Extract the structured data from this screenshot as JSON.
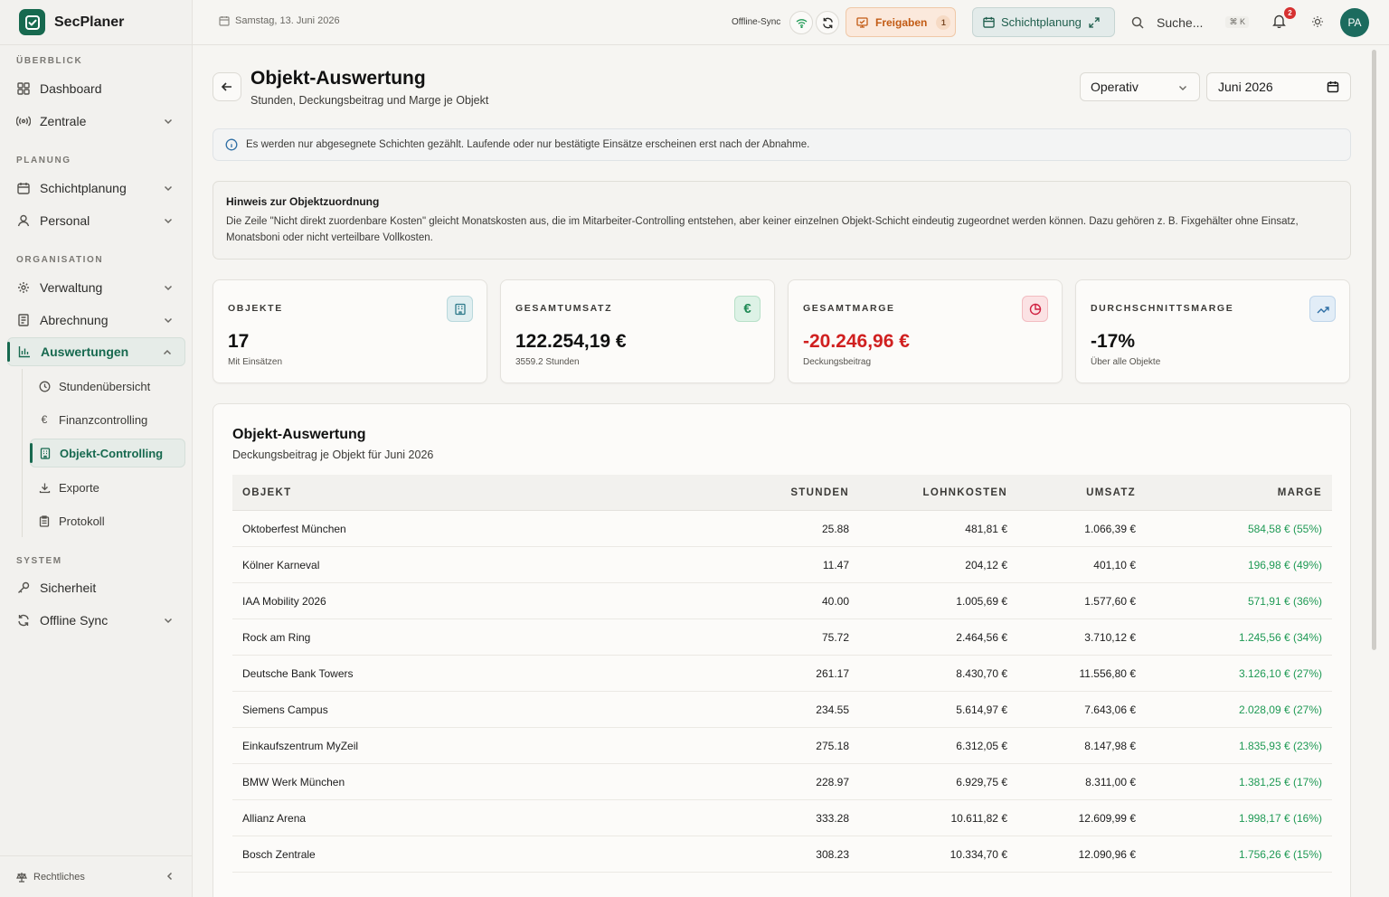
{
  "app": {
    "name": "SecPlaner"
  },
  "sidebar": {
    "sections": {
      "overview": "ÜBERBLICK",
      "planning": "PLANUNG",
      "organisation": "ORGANISATION",
      "system": "SYSTEM"
    },
    "items": {
      "dashboard": "Dashboard",
      "zentrale": "Zentrale",
      "schichtplanung": "Schichtplanung",
      "personal": "Personal",
      "verwaltung": "Verwaltung",
      "abrechnung": "Abrechnung",
      "auswertungen": "Auswertungen",
      "sicherheit": "Sicherheit",
      "offline_sync": "Offline Sync"
    },
    "sub_items": {
      "stunden": "Stundenübersicht",
      "finanz": "Finanzcontrolling",
      "objekt": "Objekt-Controlling",
      "exporte": "Exporte",
      "protokoll": "Protokoll"
    },
    "footer": "Rechtliches"
  },
  "topbar": {
    "date": "Samstag, 13. Juni 2026",
    "offline_sync_label": "Offline-Sync",
    "freigaben_label": "Freigaben",
    "freigaben_count": "1",
    "schichtplanung_label": "Schichtplanung",
    "search_label": "Suche...",
    "search_shortcut": "⌘ K",
    "notifications_count": "2",
    "avatar_initials": "PA"
  },
  "header": {
    "title": "Objekt-Auswertung",
    "subtitle": "Stunden, Deckungsbeitrag und Marge je Objekt",
    "mode_select": "Operativ",
    "month": "Juni 2026"
  },
  "info": "Es werden nur abgesegnete Schichten gezählt. Laufende oder nur bestätigte Einsätze erscheinen erst nach der Abnahme.",
  "hint": {
    "title": "Hinweis zur Objektzuordnung",
    "text": "Die Zeile \"Nicht direkt zuordenbare Kosten\" gleicht Monatskosten aus, die im Mitarbeiter-Controlling entstehen, aber keiner einzelnen Objekt-Schicht eindeutig zugeordnet werden können. Dazu gehören z. B. Fixgehälter ohne Einsatz, Monatsboni oder nicht verteilbare Vollkosten."
  },
  "kpis": [
    {
      "label": "OBJEKTE",
      "value": "17",
      "sub": "Mit Einsätzen",
      "icon": "building-icon",
      "color": "#2e7a8a"
    },
    {
      "label": "GESAMTUMSATZ",
      "value": "122.254,19 €",
      "sub": "3559.2 Stunden",
      "icon": "euro-icon",
      "color": "#1f8a55"
    },
    {
      "label": "GESAMTMARGE",
      "value": "-20.246,96 €",
      "sub": "Deckungsbeitrag",
      "icon": "pie-icon",
      "color": "#d02020"
    },
    {
      "label": "DURCHSCHNITTSMARGE",
      "value": "-17%",
      "sub": "Über alle Objekte",
      "icon": "trend-up-icon",
      "color": "#2f6fa5"
    }
  ],
  "table": {
    "title": "Objekt-Auswertung",
    "subtitle": "Deckungsbeitrag je Objekt für Juni 2026",
    "headers": {
      "objekt": "OBJEKT",
      "stunden": "STUNDEN",
      "lohnkosten": "LOHNKOSTEN",
      "umsatz": "UMSATZ",
      "marge": "MARGE"
    },
    "rows": [
      {
        "objekt": "Oktoberfest München",
        "stunden": "25.88",
        "lohnkosten": "481,81 €",
        "umsatz": "1.066,39 €",
        "marge": "584,58 € (55%)"
      },
      {
        "objekt": "Kölner Karneval",
        "stunden": "11.47",
        "lohnkosten": "204,12 €",
        "umsatz": "401,10 €",
        "marge": "196,98 € (49%)"
      },
      {
        "objekt": "IAA Mobility 2026",
        "stunden": "40.00",
        "lohnkosten": "1.005,69 €",
        "umsatz": "1.577,60 €",
        "marge": "571,91 € (36%)"
      },
      {
        "objekt": "Rock am Ring",
        "stunden": "75.72",
        "lohnkosten": "2.464,56 €",
        "umsatz": "3.710,12 €",
        "marge": "1.245,56 € (34%)"
      },
      {
        "objekt": "Deutsche Bank Towers",
        "stunden": "261.17",
        "lohnkosten": "8.430,70 €",
        "umsatz": "11.556,80 €",
        "marge": "3.126,10 € (27%)"
      },
      {
        "objekt": "Siemens Campus",
        "stunden": "234.55",
        "lohnkosten": "5.614,97 €",
        "umsatz": "7.643,06 €",
        "marge": "2.028,09 € (27%)"
      },
      {
        "objekt": "Einkaufszentrum MyZeil",
        "stunden": "275.18",
        "lohnkosten": "6.312,05 €",
        "umsatz": "8.147,98 €",
        "marge": "1.835,93 € (23%)"
      },
      {
        "objekt": "BMW Werk München",
        "stunden": "228.97",
        "lohnkosten": "6.929,75 €",
        "umsatz": "8.311,00 €",
        "marge": "1.381,25 € (17%)"
      },
      {
        "objekt": "Allianz Arena",
        "stunden": "333.28",
        "lohnkosten": "10.611,82 €",
        "umsatz": "12.609,99 €",
        "marge": "1.998,17 € (16%)"
      },
      {
        "objekt": "Bosch Zentrale",
        "stunden": "308.23",
        "lohnkosten": "10.334,70 €",
        "umsatz": "12.090,96 €",
        "marge": "1.756,26 € (15%)"
      }
    ]
  }
}
